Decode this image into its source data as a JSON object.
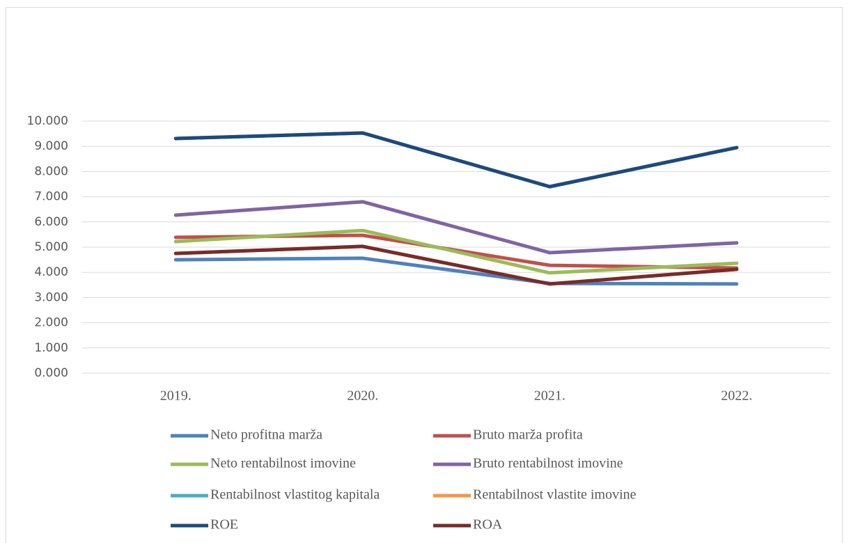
{
  "chart_data": {
    "type": "line",
    "categories": [
      "2019.",
      "2020.",
      "2021.",
      "2022."
    ],
    "ylim": [
      0,
      10
    ],
    "yticks": [
      {
        "value": 0,
        "label": "0.000"
      },
      {
        "value": 1,
        "label": "1.000"
      },
      {
        "value": 2,
        "label": "2.000"
      },
      {
        "value": 3,
        "label": "3.000"
      },
      {
        "value": 4,
        "label": "4.000"
      },
      {
        "value": 5,
        "label": "5.000"
      },
      {
        "value": 6,
        "label": "6.000"
      },
      {
        "value": 7,
        "label": "7.000"
      },
      {
        "value": 8,
        "label": "8.000"
      },
      {
        "value": 9,
        "label": "9.000"
      },
      {
        "value": 10,
        "label": "10.000"
      }
    ],
    "grid": true,
    "legend": "bottom",
    "series": [
      {
        "name": "Neto profitna marža",
        "color": "#4f81bd",
        "values": [
          4.5,
          4.56,
          3.56,
          3.54
        ]
      },
      {
        "name": "Bruto marža profita",
        "color": "#c0504d",
        "values": [
          5.39,
          5.47,
          4.28,
          4.17
        ]
      },
      {
        "name": "Neto rentabilnost imovine",
        "color": "#9bbb59",
        "values": [
          5.22,
          5.66,
          3.98,
          4.36
        ]
      },
      {
        "name": "Bruto rentabilnost imovine",
        "color": "#8064a2",
        "values": [
          6.27,
          6.8,
          4.78,
          5.17
        ]
      },
      {
        "name": "Rentabilnost vlastitog kapitala",
        "color": "#4bacc6",
        "values": [
          9.31,
          9.53,
          7.4,
          8.95
        ]
      },
      {
        "name": "Rentabilnost vlastite imovine",
        "color": "#f79646",
        "values": [
          4.75,
          5.03,
          3.54,
          4.12
        ]
      },
      {
        "name": "ROE",
        "color": "#1f497d",
        "values": [
          9.31,
          9.53,
          7.4,
          8.95
        ]
      },
      {
        "name": "ROA",
        "color": "#772c2a",
        "values": [
          4.75,
          5.03,
          3.54,
          4.12
        ]
      }
    ]
  }
}
